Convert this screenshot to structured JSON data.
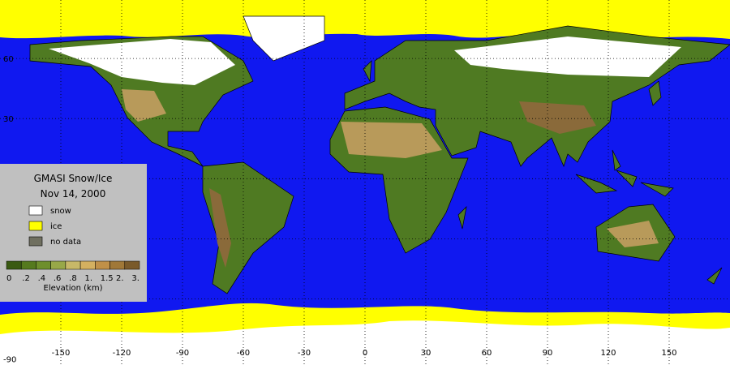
{
  "legend": {
    "title": "GMASI Snow/Ice",
    "date": "Nov 14, 2000",
    "items": [
      {
        "label": "snow",
        "color": "#ffffff"
      },
      {
        "label": "ice",
        "color": "#ffff00"
      },
      {
        "label": "no data",
        "color": "#707060"
      }
    ],
    "elevation": {
      "labels": [
        "0",
        ".2",
        ".4",
        ".6",
        ".8",
        "1.",
        "1.5",
        "2.",
        "3."
      ],
      "colors": [
        "#3a5a12",
        "#557a1e",
        "#6e8f2c",
        "#98a848",
        "#c8b868",
        "#d4b060",
        "#c09048",
        "#a07838",
        "#7a5a2a"
      ],
      "title": "Elevation (km)"
    }
  },
  "axes": {
    "lon_ticks": [
      -150,
      -120,
      -90,
      -60,
      -30,
      0,
      30,
      60,
      90,
      120,
      150
    ],
    "lat_ticks": [
      60,
      30,
      -90
    ],
    "lat_grid": [
      60,
      30,
      0,
      -30,
      -60
    ]
  }
}
